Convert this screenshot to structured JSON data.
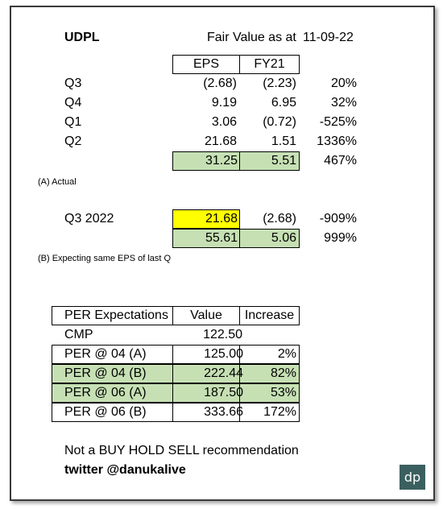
{
  "company": "UDPL",
  "fair_value_label": "Fair Value as at",
  "fair_value_date": "11-09-22",
  "headers": {
    "eps": "EPS",
    "fy": "FY21"
  },
  "quarters": [
    {
      "label": "Q3",
      "eps": "(2.68)",
      "fy": "(2.23)",
      "pct": "20%"
    },
    {
      "label": "Q4",
      "eps": "9.19",
      "fy": "6.95",
      "pct": "32%"
    },
    {
      "label": "Q1",
      "eps": "3.06",
      "fy": "(0.72)",
      "pct": "-525%"
    },
    {
      "label": "Q2",
      "eps": "21.68",
      "fy": "1.51",
      "pct": "1336%"
    }
  ],
  "total_a": {
    "eps": "31.25",
    "fy": "5.51",
    "pct": "467%"
  },
  "note_a": "(A)  Actual",
  "q3_2022": {
    "label": "Q3 2022",
    "eps": "21.68",
    "fy": "(2.68)",
    "pct": "-909%"
  },
  "total_b": {
    "eps": "55.61",
    "fy": "5.06",
    "pct": "999%"
  },
  "note_b": "(B)  Expecting same EPS of last Q",
  "per_table": {
    "headers": {
      "label": "PER Expectations",
      "value": "Value",
      "increase": "Increase"
    },
    "rows": [
      {
        "label": "CMP",
        "value": "122.50",
        "increase": ""
      },
      {
        "label": "PER @ 04 (A)",
        "value": "125.00",
        "increase": "2%"
      },
      {
        "label": "PER @ 04 (B)",
        "value": "222.44",
        "increase": "82%"
      },
      {
        "label": "PER @ 06 (A)",
        "value": "187.50",
        "increase": "53%"
      },
      {
        "label": "PER @ 06 (B)",
        "value": "333.66",
        "increase": "172%"
      }
    ]
  },
  "disclaimer": "Not a BUY HOLD SELL recommendation",
  "twitter": "twitter @danukalive",
  "logo_text": "dp"
}
